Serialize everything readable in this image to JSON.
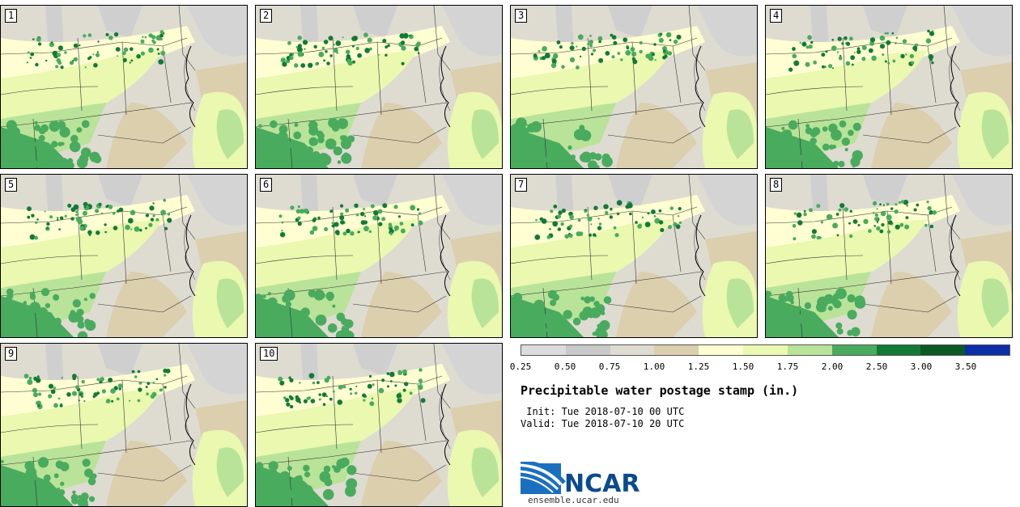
{
  "panels": [
    {
      "label": "1"
    },
    {
      "label": "2"
    },
    {
      "label": "3"
    },
    {
      "label": "4"
    },
    {
      "label": "5"
    },
    {
      "label": "6"
    },
    {
      "label": "7"
    },
    {
      "label": "8"
    },
    {
      "label": "9"
    },
    {
      "label": "10"
    }
  ],
  "colorbar": {
    "colors": [
      "#dcdcdc",
      "#c9c9c9",
      "#dedbd1",
      "#dccfae",
      "#fefed2",
      "#eaf8b0",
      "#b9e399",
      "#49ab5e",
      "#137a36",
      "#0a5a26",
      "#0c2ea8"
    ],
    "ticks": [
      "0.25",
      "0.50",
      "0.75",
      "1.00",
      "1.25",
      "1.50",
      "1.75",
      "2.00",
      "2.50",
      "3.00",
      "3.50"
    ]
  },
  "title": "Precipitable water postage stamp (in.)",
  "init": " Init: Tue 2018-07-10 00 UTC",
  "valid": "Valid: Tue 2018-07-10 20 UTC",
  "logo": {
    "text": "NCAR",
    "url": "ensemble.ucar.edu"
  },
  "map_legend": {
    "shade_colors": [
      "#dedbd1",
      "#cfcfcf",
      "#dccfae",
      "#fefed2",
      "#eaf8b0",
      "#b9e399",
      "#49ab5e",
      "#137a36"
    ]
  }
}
